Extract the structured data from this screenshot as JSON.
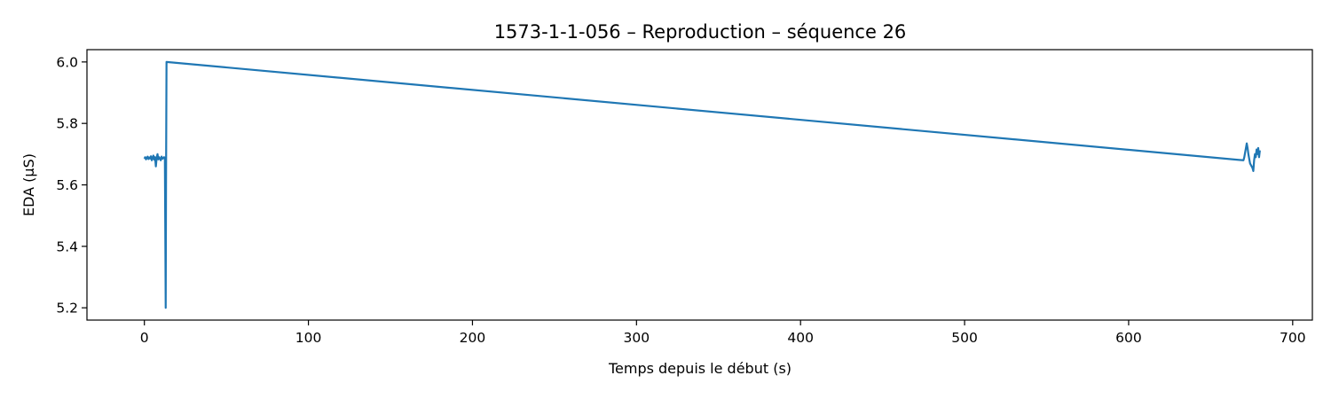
{
  "chart_data": {
    "type": "line",
    "title": "1573-1-1-056 – Reproduction – séquence 26",
    "xlabel": "Temps depuis le début (s)",
    "ylabel": "EDA (µS)",
    "xlim": [
      -35,
      712
    ],
    "ylim": [
      5.16,
      6.04
    ],
    "xticks": [
      0,
      100,
      200,
      300,
      400,
      500,
      600,
      700
    ],
    "yticks": [
      5.2,
      5.4,
      5.6,
      5.8,
      6.0
    ],
    "xtick_labels": [
      "0",
      "100",
      "200",
      "300",
      "400",
      "500",
      "600",
      "700"
    ],
    "ytick_labels": [
      "5.2",
      "5.4",
      "5.6",
      "5.8",
      "6.0"
    ],
    "grid": false,
    "line_color": "#1f77b4",
    "series": [
      {
        "x": [
          0,
          0.5,
          1,
          1.5,
          2,
          2.5,
          3,
          3.5,
          4,
          4.5,
          5,
          5.5,
          6,
          6.5,
          7,
          7.5,
          8,
          8.5,
          9,
          9.5,
          10,
          10.5,
          11,
          11.5,
          12,
          12.5,
          12.8,
          13,
          13.2,
          13.5,
          670,
          670.5,
          671,
          671.5,
          672,
          672.5,
          673,
          673.5,
          674,
          674.5,
          675,
          675.5,
          676,
          676.5,
          677,
          677.5,
          678,
          678.5,
          679,
          679.5,
          680
        ],
        "y": [
          5.685,
          5.69,
          5.683,
          5.688,
          5.692,
          5.684,
          5.689,
          5.686,
          5.693,
          5.68,
          5.688,
          5.695,
          5.682,
          5.69,
          5.66,
          5.688,
          5.7,
          5.683,
          5.69,
          5.686,
          5.68,
          5.692,
          5.685,
          5.687,
          5.69,
          5.688,
          5.4,
          5.2,
          5.6,
          6.0,
          5.68,
          5.69,
          5.705,
          5.72,
          5.735,
          5.72,
          5.7,
          5.685,
          5.67,
          5.665,
          5.66,
          5.655,
          5.645,
          5.68,
          5.7,
          5.69,
          5.715,
          5.7,
          5.72,
          5.69,
          5.712
        ]
      }
    ]
  }
}
